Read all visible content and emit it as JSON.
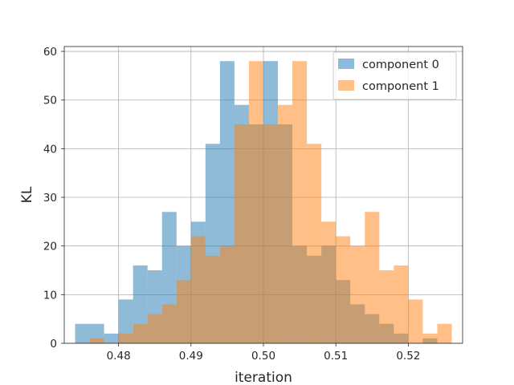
{
  "chart_data": {
    "type": "bar",
    "title": "",
    "xlabel": "iteration",
    "ylabel": "KL",
    "xlim": [
      0.4725,
      0.5275
    ],
    "ylim": [
      0,
      61
    ],
    "xticks": [
      "0.48",
      "0.49",
      "0.50",
      "0.51",
      "0.52"
    ],
    "xtick_values": [
      0.48,
      0.49,
      0.5,
      0.51,
      0.52
    ],
    "yticks": [
      "0",
      "10",
      "20",
      "30",
      "40",
      "50",
      "60"
    ],
    "ytick_values": [
      0,
      10,
      20,
      30,
      40,
      50,
      60
    ],
    "grid": true,
    "legend_position": "top-right",
    "series": [
      {
        "name": "component 0",
        "color": "#1f77b4",
        "alpha": 0.5,
        "bin_start": 0.474,
        "bin_width": 0.002,
        "values": [
          4,
          4,
          2,
          9,
          16,
          15,
          27,
          20,
          25,
          41,
          58,
          49,
          45,
          58,
          45,
          20,
          18,
          20,
          13,
          8,
          6,
          4,
          2,
          0,
          1,
          0
        ]
      },
      {
        "name": "component 1",
        "color": "#ff7f0e",
        "alpha": 0.5,
        "bin_start": 0.474,
        "bin_width": 0.002,
        "values": [
          0,
          1,
          0,
          2,
          4,
          6,
          8,
          13,
          22,
          18,
          20,
          45,
          58,
          45,
          49,
          58,
          41,
          25,
          22,
          20,
          27,
          15,
          16,
          9,
          2,
          4
        ]
      }
    ]
  }
}
